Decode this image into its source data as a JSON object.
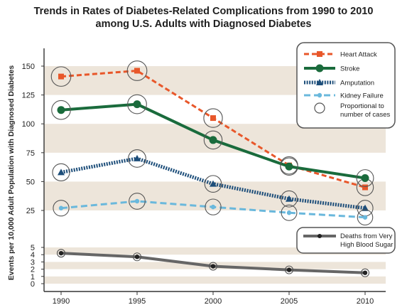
{
  "title_line1": "Trends in Rates of Diabetes-Related Complications from 1990 to 2010",
  "title_line2": "among U.S. Adults with Diagnosed Diabetes",
  "chart_data": {
    "type": "line",
    "title": "Trends in Rates of Diabetes-Related Complications from 1990 to 2010 among U.S. Adults with Diagnosed Diabetes",
    "xlabel": "",
    "ylabel": "Events per 10,000 Adult Population with Diagnosed Diabetes",
    "x": [
      1990,
      1995,
      2000,
      2005,
      2010
    ],
    "x_tick_labels": [
      "1990",
      "1995",
      "2000",
      "2005",
      "2010"
    ],
    "y_axis": "broken",
    "y_upper_ticks": [
      25,
      50,
      75,
      100,
      125,
      150
    ],
    "y_upper_tick_labels": [
      "25",
      "50",
      "75",
      "100",
      "125",
      "150"
    ],
    "y_lower_ticks": [
      0,
      1,
      2,
      3,
      4,
      5
    ],
    "y_lower_tick_labels": [
      "0",
      "1",
      "2",
      "3",
      "4",
      "5"
    ],
    "grid": "alternating horizontal bands",
    "legend_position": "top-right",
    "series": [
      {
        "name": "Heart Attack",
        "color": "#e8572a",
        "style": "dashed",
        "marker": "square",
        "segment": "upper",
        "values": [
          141,
          146,
          105,
          64,
          45
        ]
      },
      {
        "name": "Stroke",
        "color": "#1a6b3c",
        "style": "solid",
        "marker": "circle",
        "segment": "upper",
        "values": [
          112,
          117,
          86,
          63,
          53
        ]
      },
      {
        "name": "Amputation",
        "color": "#1d4e7a",
        "style": "dotted",
        "marker": "triangle",
        "segment": "upper",
        "values": [
          58,
          70,
          48,
          35,
          27
        ]
      },
      {
        "name": "Kidney Failure",
        "color": "#6ab8dc",
        "style": "dashed",
        "marker": "dot",
        "segment": "upper",
        "values": [
          27,
          33,
          28,
          23,
          19
        ]
      },
      {
        "name": "Deaths from Very High Blood Sugar",
        "color": "#666666",
        "style": "solid",
        "marker": "dot",
        "segment": "lower",
        "values": [
          4.2,
          3.7,
          2.4,
          1.9,
          1.5
        ]
      }
    ],
    "proportional_legend": "Proportional to number of cases",
    "legend_top": [
      "Heart Attack",
      "Stroke",
      "Amputation",
      "Kidney Failure",
      "Proportional to number of cases"
    ],
    "legend_bottom": [
      "Deaths from Very High Blood Sugar"
    ]
  }
}
